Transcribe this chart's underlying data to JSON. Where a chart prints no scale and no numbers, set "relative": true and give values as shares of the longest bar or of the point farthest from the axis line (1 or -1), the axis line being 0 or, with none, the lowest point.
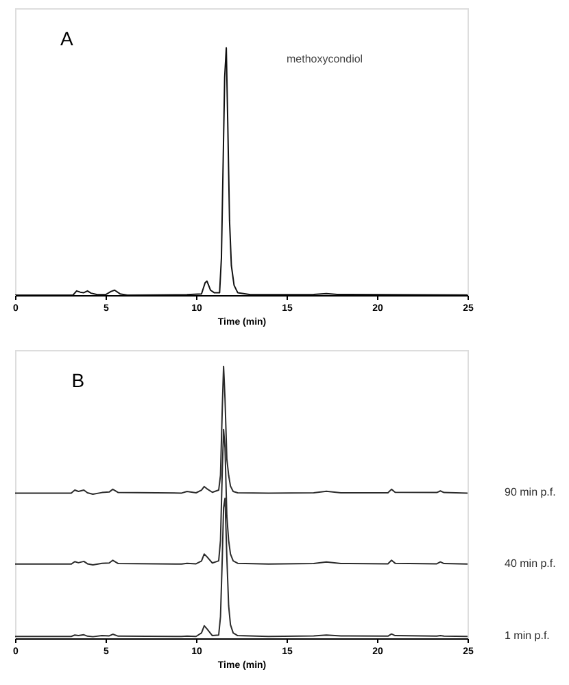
{
  "chart_data": [
    {
      "type": "line",
      "relative": true,
      "xlabel": "Time (min)",
      "xlim": [
        0,
        25
      ],
      "xticks": [
        0,
        5,
        10,
        15,
        20,
        25
      ],
      "annotations": [
        "A",
        "methoxycondiol"
      ],
      "series": [
        {
          "color": "#111111",
          "x": [
            0,
            3.2,
            3.4,
            3.6,
            3.8,
            4.0,
            4.2,
            4.5,
            5.0,
            5.3,
            5.5,
            5.8,
            6.2,
            9.5,
            10.3,
            10.5,
            10.6,
            10.8,
            11.0,
            11.3,
            11.4,
            11.5,
            11.58,
            11.67,
            11.75,
            11.85,
            11.95,
            12.1,
            12.3,
            13,
            16.5,
            17.2,
            17.8,
            25
          ],
          "values": [
            0,
            0,
            0.017,
            0.012,
            0.01,
            0.017,
            0.008,
            0.003,
            0.002,
            0.015,
            0.02,
            0.005,
            0,
            0.002,
            0.005,
            0.05,
            0.057,
            0.02,
            0.01,
            0.01,
            0.15,
            0.55,
            0.88,
            1.0,
            0.7,
            0.3,
            0.12,
            0.04,
            0.01,
            0.002,
            0.003,
            0.006,
            0.003,
            0.001
          ]
        }
      ]
    },
    {
      "type": "line",
      "relative": true,
      "xlabel": "Time (min)",
      "xlim": [
        0,
        25
      ],
      "xticks": [
        0,
        5,
        10,
        15,
        20,
        25
      ],
      "annotations": [
        "B"
      ],
      "series": [
        {
          "name": "90 min p.f.",
          "color": "#2b2b2b",
          "x": [
            0,
            3.1,
            3.3,
            3.5,
            3.8,
            4.0,
            4.3,
            4.8,
            5.2,
            5.4,
            5.7,
            9.2,
            9.5,
            10.0,
            10.3,
            10.45,
            10.6,
            10.9,
            11.25,
            11.35,
            11.45,
            11.52,
            11.6,
            11.7,
            11.8,
            11.9,
            12.05,
            12.3,
            14,
            16.5,
            17.2,
            18,
            20.6,
            20.8,
            21.0,
            23.3,
            23.5,
            23.7,
            25
          ],
          "values": [
            0.534,
            0.534,
            0.545,
            0.54,
            0.545,
            0.535,
            0.53,
            0.536,
            0.538,
            0.548,
            0.536,
            0.534,
            0.54,
            0.535,
            0.545,
            0.558,
            0.55,
            0.537,
            0.545,
            0.6,
            0.85,
            1.0,
            0.88,
            0.66,
            0.6,
            0.56,
            0.54,
            0.535,
            0.534,
            0.535,
            0.541,
            0.535,
            0.535,
            0.548,
            0.537,
            0.536,
            0.542,
            0.536,
            0.534
          ]
        },
        {
          "name": "40 min p.f.",
          "color": "#2b2b2b",
          "x": [
            0,
            3.1,
            3.3,
            3.5,
            3.8,
            4.0,
            4.3,
            4.8,
            5.2,
            5.4,
            5.7,
            9.2,
            9.5,
            10.0,
            10.3,
            10.45,
            10.6,
            10.9,
            11.25,
            11.35,
            11.45,
            11.52,
            11.6,
            11.7,
            11.8,
            11.9,
            12.05,
            12.3,
            14,
            16.5,
            17.2,
            18,
            20.6,
            20.8,
            21.0,
            23.3,
            23.5,
            23.7,
            25
          ],
          "values": [
            0.273,
            0.273,
            0.282,
            0.278,
            0.283,
            0.274,
            0.27,
            0.276,
            0.277,
            0.287,
            0.275,
            0.273,
            0.276,
            0.274,
            0.284,
            0.31,
            0.3,
            0.277,
            0.285,
            0.36,
            0.62,
            0.768,
            0.7,
            0.45,
            0.36,
            0.31,
            0.285,
            0.276,
            0.273,
            0.275,
            0.281,
            0.275,
            0.274,
            0.287,
            0.276,
            0.274,
            0.281,
            0.275,
            0.273
          ]
        },
        {
          "name": "1 min p.f.",
          "color": "#2b2b2b",
          "x": [
            0,
            3.1,
            3.3,
            3.5,
            3.8,
            4.0,
            4.3,
            4.8,
            5.2,
            5.4,
            5.7,
            9.2,
            9.5,
            10.0,
            10.3,
            10.45,
            10.6,
            10.9,
            11.25,
            11.35,
            11.45,
            11.52,
            11.6,
            11.7,
            11.8,
            11.9,
            12.05,
            12.3,
            14,
            16.5,
            17.2,
            18,
            20.6,
            20.8,
            21.0,
            23.3,
            23.5,
            23.7,
            25
          ],
          "values": [
            0.007,
            0.007,
            0.012,
            0.01,
            0.013,
            0.008,
            0.006,
            0.01,
            0.009,
            0.015,
            0.008,
            0.007,
            0.008,
            0.007,
            0.02,
            0.046,
            0.035,
            0.01,
            0.012,
            0.08,
            0.3,
            0.48,
            0.515,
            0.3,
            0.12,
            0.05,
            0.02,
            0.01,
            0.007,
            0.009,
            0.012,
            0.009,
            0.008,
            0.016,
            0.01,
            0.008,
            0.01,
            0.008,
            0.007
          ]
        }
      ]
    }
  ]
}
